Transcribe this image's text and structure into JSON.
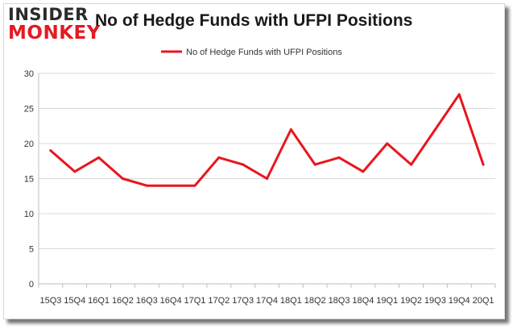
{
  "brand": {
    "top": "INSIDER",
    "bottom": "MONKEY"
  },
  "colors": {
    "series": "#e8161d",
    "grid": "#d9d9d9",
    "axis": "#bfbfbf",
    "logo_red": "#e31b23"
  },
  "chart_data": {
    "type": "line",
    "title": "No of Hedge Funds with UFPI Positions",
    "xlabel": "",
    "ylabel": "",
    "categories": [
      "15Q3",
      "15Q4",
      "16Q1",
      "16Q2",
      "16Q3",
      "16Q4",
      "17Q1",
      "17Q2",
      "17Q3",
      "17Q4",
      "18Q1",
      "18Q2",
      "18Q3",
      "18Q4",
      "19Q1",
      "19Q2",
      "19Q3",
      "19Q4",
      "20Q1"
    ],
    "series": [
      {
        "name": "No of Hedge Funds with UFPI Positions",
        "values": [
          19,
          16,
          18,
          15,
          14,
          14,
          14,
          18,
          17,
          15,
          22,
          17,
          18,
          16,
          20,
          17,
          22,
          27,
          17
        ]
      }
    ],
    "ylim": [
      0,
      30
    ],
    "yticks": [
      0,
      5,
      10,
      15,
      20,
      25,
      30
    ],
    "grid": true,
    "legend": "top-center"
  }
}
